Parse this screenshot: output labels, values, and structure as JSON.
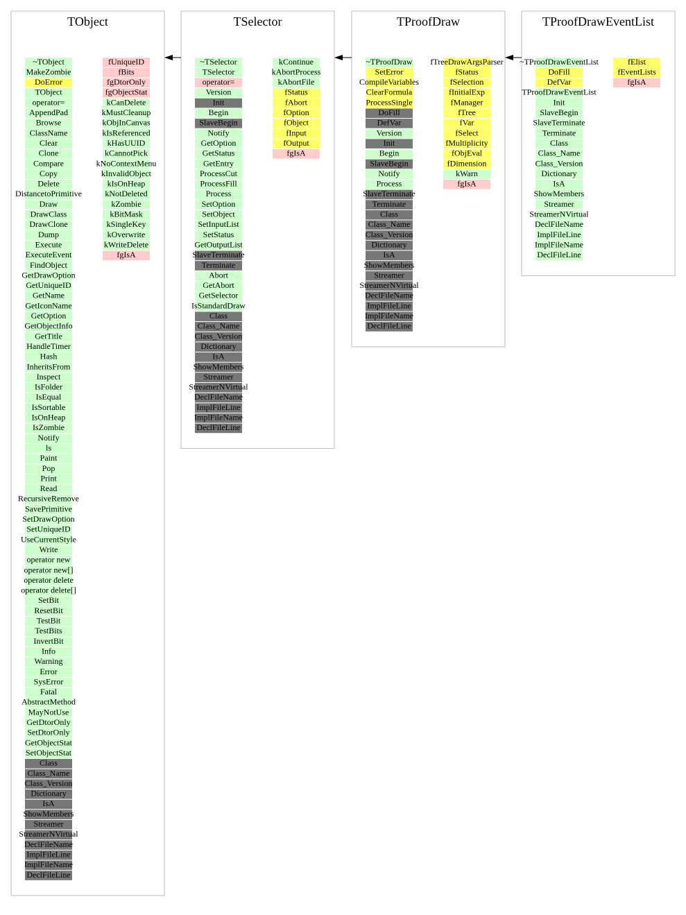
{
  "classes": [
    {
      "title": "TObject",
      "methods": [
        {
          "label": "~TObject",
          "color": "#ccffcc"
        },
        {
          "label": "MakeZombie",
          "color": "#ccffcc"
        },
        {
          "label": "DoError",
          "color": "#ffff66"
        },
        {
          "label": "TObject",
          "color": "#ccffcc"
        },
        {
          "label": "operator=",
          "color": "#ccffcc"
        },
        {
          "label": "AppendPad",
          "color": "#ccffcc"
        },
        {
          "label": "Browse",
          "color": "#ccffcc"
        },
        {
          "label": "ClassName",
          "color": "#ccffcc"
        },
        {
          "label": "Clear",
          "color": "#ccffcc"
        },
        {
          "label": "Clone",
          "color": "#ccffcc"
        },
        {
          "label": "Compare",
          "color": "#ccffcc"
        },
        {
          "label": "Copy",
          "color": "#ccffcc"
        },
        {
          "label": "Delete",
          "color": "#ccffcc"
        },
        {
          "label": "DistancetoPrimitive",
          "color": "#ccffcc"
        },
        {
          "label": "Draw",
          "color": "#ccffcc"
        },
        {
          "label": "DrawClass",
          "color": "#ccffcc"
        },
        {
          "label": "DrawClone",
          "color": "#ccffcc"
        },
        {
          "label": "Dump",
          "color": "#ccffcc"
        },
        {
          "label": "Execute",
          "color": "#ccffcc"
        },
        {
          "label": "ExecuteEvent",
          "color": "#ccffcc"
        },
        {
          "label": "FindObject",
          "color": "#ccffcc"
        },
        {
          "label": "GetDrawOption",
          "color": "#ccffcc"
        },
        {
          "label": "GetUniqueID",
          "color": "#ccffcc"
        },
        {
          "label": "GetName",
          "color": "#ccffcc"
        },
        {
          "label": "GetIconName",
          "color": "#ccffcc"
        },
        {
          "label": "GetOption",
          "color": "#ccffcc"
        },
        {
          "label": "GetObjectInfo",
          "color": "#ccffcc"
        },
        {
          "label": "GetTitle",
          "color": "#ccffcc"
        },
        {
          "label": "HandleTimer",
          "color": "#ccffcc"
        },
        {
          "label": "Hash",
          "color": "#ccffcc"
        },
        {
          "label": "InheritsFrom",
          "color": "#ccffcc"
        },
        {
          "label": "Inspect",
          "color": "#ccffcc"
        },
        {
          "label": "IsFolder",
          "color": "#ccffcc"
        },
        {
          "label": "IsEqual",
          "color": "#ccffcc"
        },
        {
          "label": "IsSortable",
          "color": "#ccffcc"
        },
        {
          "label": "IsOnHeap",
          "color": "#ccffcc"
        },
        {
          "label": "IsZombie",
          "color": "#ccffcc"
        },
        {
          "label": "Notify",
          "color": "#ccffcc"
        },
        {
          "label": "ls",
          "color": "#ccffcc"
        },
        {
          "label": "Paint",
          "color": "#ccffcc"
        },
        {
          "label": "Pop",
          "color": "#ccffcc"
        },
        {
          "label": "Print",
          "color": "#ccffcc"
        },
        {
          "label": "Read",
          "color": "#ccffcc"
        },
        {
          "label": "RecursiveRemove",
          "color": "#ccffcc"
        },
        {
          "label": "SavePrimitive",
          "color": "#ccffcc"
        },
        {
          "label": "SetDrawOption",
          "color": "#ccffcc"
        },
        {
          "label": "SetUniqueID",
          "color": "#ccffcc"
        },
        {
          "label": "UseCurrentStyle",
          "color": "#ccffcc"
        },
        {
          "label": "Write",
          "color": "#ccffcc"
        },
        {
          "label": "operator new",
          "color": "#ccffcc"
        },
        {
          "label": "operator new[]",
          "color": "#ccffcc"
        },
        {
          "label": "operator delete",
          "color": "#ccffcc"
        },
        {
          "label": "operator delete[]",
          "color": "#ccffcc"
        },
        {
          "label": "SetBit",
          "color": "#ccffcc"
        },
        {
          "label": "ResetBit",
          "color": "#ccffcc"
        },
        {
          "label": "TestBit",
          "color": "#ccffcc"
        },
        {
          "label": "TestBits",
          "color": "#ccffcc"
        },
        {
          "label": "InvertBit",
          "color": "#ccffcc"
        },
        {
          "label": "Info",
          "color": "#ccffcc"
        },
        {
          "label": "Warning",
          "color": "#ccffcc"
        },
        {
          "label": "Error",
          "color": "#ccffcc"
        },
        {
          "label": "SysError",
          "color": "#ccffcc"
        },
        {
          "label": "Fatal",
          "color": "#ccffcc"
        },
        {
          "label": "AbstractMethod",
          "color": "#ccffcc"
        },
        {
          "label": "MayNotUse",
          "color": "#ccffcc"
        },
        {
          "label": "GetDtorOnly",
          "color": "#ccffcc"
        },
        {
          "label": "SetDtorOnly",
          "color": "#ccffcc"
        },
        {
          "label": "GetObjectStat",
          "color": "#ccffcc"
        },
        {
          "label": "SetObjectStat",
          "color": "#ccffcc"
        },
        {
          "label": "Class",
          "color": "#777777"
        },
        {
          "label": "Class_Name",
          "color": "#777777"
        },
        {
          "label": "Class_Version",
          "color": "#777777"
        },
        {
          "label": "Dictionary",
          "color": "#777777"
        },
        {
          "label": "IsA",
          "color": "#777777"
        },
        {
          "label": "ShowMembers",
          "color": "#777777"
        },
        {
          "label": "Streamer",
          "color": "#777777"
        },
        {
          "label": "StreamerNVirtual",
          "color": "#777777"
        },
        {
          "label": "DeclFileName",
          "color": "#777777"
        },
        {
          "label": "ImplFileLine",
          "color": "#777777"
        },
        {
          "label": "ImplFileName",
          "color": "#777777"
        },
        {
          "label": "DeclFileLine",
          "color": "#777777"
        }
      ],
      "members": [
        {
          "label": "fUniqueID",
          "color": "#ffcccc"
        },
        {
          "label": "fBits",
          "color": "#ffcccc"
        },
        {
          "label": "fgDtorOnly",
          "color": "#ffcccc"
        },
        {
          "label": "fgObjectStat",
          "color": "#ffcccc"
        },
        {
          "label": "kCanDelete",
          "color": "#ccffcc"
        },
        {
          "label": "kMustCleanup",
          "color": "#ccffcc"
        },
        {
          "label": "kObjInCanvas",
          "color": "#ccffcc"
        },
        {
          "label": "kIsReferenced",
          "color": "#ccffcc"
        },
        {
          "label": "kHasUUID",
          "color": "#ccffcc"
        },
        {
          "label": "kCannotPick",
          "color": "#ccffcc"
        },
        {
          "label": "kNoContextMenu",
          "color": "#ccffcc"
        },
        {
          "label": "kInvalidObject",
          "color": "#ccffcc"
        },
        {
          "label": "kIsOnHeap",
          "color": "#ccffcc"
        },
        {
          "label": "kNotDeleted",
          "color": "#ccffcc"
        },
        {
          "label": "kZombie",
          "color": "#ccffcc"
        },
        {
          "label": "kBitMask",
          "color": "#ccffcc"
        },
        {
          "label": "kSingleKey",
          "color": "#ccffcc"
        },
        {
          "label": "kOverwrite",
          "color": "#ccffcc"
        },
        {
          "label": "kWriteDelete",
          "color": "#ccffcc"
        },
        {
          "label": "fgIsA",
          "color": "#ffcccc"
        }
      ]
    },
    {
      "title": "TSelector",
      "methods": [
        {
          "label": "~TSelector",
          "color": "#ccffcc"
        },
        {
          "label": "TSelector",
          "color": "#ccffcc"
        },
        {
          "label": "operator=",
          "color": "#ffcccc"
        },
        {
          "label": "Version",
          "color": "#ccffcc"
        },
        {
          "label": "Init",
          "color": "#777777"
        },
        {
          "label": "Begin",
          "color": "#ccffcc"
        },
        {
          "label": "SlaveBegin",
          "color": "#777777"
        },
        {
          "label": "Notify",
          "color": "#ccffcc"
        },
        {
          "label": "GetOption",
          "color": "#ccffcc"
        },
        {
          "label": "GetStatus",
          "color": "#ccffcc"
        },
        {
          "label": "GetEntry",
          "color": "#ccffcc"
        },
        {
          "label": "ProcessCut",
          "color": "#ccffcc"
        },
        {
          "label": "ProcessFill",
          "color": "#ccffcc"
        },
        {
          "label": "Process",
          "color": "#ccffcc"
        },
        {
          "label": "SetOption",
          "color": "#ccffcc"
        },
        {
          "label": "SetObject",
          "color": "#ccffcc"
        },
        {
          "label": "SetInputList",
          "color": "#ccffcc"
        },
        {
          "label": "SetStatus",
          "color": "#ccffcc"
        },
        {
          "label": "GetOutputList",
          "color": "#ccffcc"
        },
        {
          "label": "SlaveTerminate",
          "color": "#777777"
        },
        {
          "label": "Terminate",
          "color": "#777777"
        },
        {
          "label": "Abort",
          "color": "#ccffcc"
        },
        {
          "label": "GetAbort",
          "color": "#ccffcc"
        },
        {
          "label": "GetSelector",
          "color": "#ccffcc"
        },
        {
          "label": "IsStandardDraw",
          "color": "#ccffcc"
        },
        {
          "label": "Class",
          "color": "#777777"
        },
        {
          "label": "Class_Name",
          "color": "#777777"
        },
        {
          "label": "Class_Version",
          "color": "#777777"
        },
        {
          "label": "Dictionary",
          "color": "#777777"
        },
        {
          "label": "IsA",
          "color": "#777777"
        },
        {
          "label": "ShowMembers",
          "color": "#777777"
        },
        {
          "label": "Streamer",
          "color": "#777777"
        },
        {
          "label": "StreamerNVirtual",
          "color": "#777777"
        },
        {
          "label": "DeclFileName",
          "color": "#777777"
        },
        {
          "label": "ImplFileLine",
          "color": "#777777"
        },
        {
          "label": "ImplFileName",
          "color": "#777777"
        },
        {
          "label": "DeclFileLine",
          "color": "#777777"
        }
      ],
      "members": [
        {
          "label": "kContinue",
          "color": "#ccffcc"
        },
        {
          "label": "kAbortProcess",
          "color": "#ccffcc"
        },
        {
          "label": "kAbortFile",
          "color": "#ccffcc"
        },
        {
          "label": "fStatus",
          "color": "#ffff66"
        },
        {
          "label": "fAbort",
          "color": "#ffff66"
        },
        {
          "label": "fOption",
          "color": "#ffff66"
        },
        {
          "label": "fObject",
          "color": "#ffff66"
        },
        {
          "label": "fInput",
          "color": "#ffff66"
        },
        {
          "label": "fOutput",
          "color": "#ffff66"
        },
        {
          "label": "fgIsA",
          "color": "#ffcccc"
        }
      ]
    },
    {
      "title": "TProofDraw",
      "methods": [
        {
          "label": "~TProofDraw",
          "color": "#ccffcc"
        },
        {
          "label": "SetError",
          "color": "#ffff66"
        },
        {
          "label": "CompileVariables",
          "color": "#ffff66"
        },
        {
          "label": "ClearFormula",
          "color": "#ffff66"
        },
        {
          "label": "ProcessSingle",
          "color": "#ffff66"
        },
        {
          "label": "DoFill",
          "color": "#777777"
        },
        {
          "label": "DefVar",
          "color": "#777777"
        },
        {
          "label": "Version",
          "color": "#ccffcc"
        },
        {
          "label": "Init",
          "color": "#777777"
        },
        {
          "label": "Begin",
          "color": "#ccffcc"
        },
        {
          "label": "SlaveBegin",
          "color": "#777777"
        },
        {
          "label": "Notify",
          "color": "#ccffcc"
        },
        {
          "label": "Process",
          "color": "#ccffcc"
        },
        {
          "label": "SlaveTerminate",
          "color": "#777777"
        },
        {
          "label": "Terminate",
          "color": "#777777"
        },
        {
          "label": "Class",
          "color": "#777777"
        },
        {
          "label": "Class_Name",
          "color": "#777777"
        },
        {
          "label": "Class_Version",
          "color": "#777777"
        },
        {
          "label": "Dictionary",
          "color": "#777777"
        },
        {
          "label": "IsA",
          "color": "#777777"
        },
        {
          "label": "ShowMembers",
          "color": "#777777"
        },
        {
          "label": "Streamer",
          "color": "#777777"
        },
        {
          "label": "StreamerNVirtual",
          "color": "#777777"
        },
        {
          "label": "DeclFileName",
          "color": "#777777"
        },
        {
          "label": "ImplFileLine",
          "color": "#777777"
        },
        {
          "label": "ImplFileName",
          "color": "#777777"
        },
        {
          "label": "DeclFileLine",
          "color": "#777777"
        }
      ],
      "members": [
        {
          "label": "fTreeDrawArgsParser",
          "color": "#ffff66"
        },
        {
          "label": "fStatus",
          "color": "#ffff66"
        },
        {
          "label": "fSelection",
          "color": "#ffff66"
        },
        {
          "label": "fInitialExp",
          "color": "#ffff66"
        },
        {
          "label": "fManager",
          "color": "#ffff66"
        },
        {
          "label": "fTree",
          "color": "#ffff66"
        },
        {
          "label": "fVar",
          "color": "#ffff66"
        },
        {
          "label": "fSelect",
          "color": "#ffff66"
        },
        {
          "label": "fMultiplicity",
          "color": "#ffff66"
        },
        {
          "label": "fObjEval",
          "color": "#ffff66"
        },
        {
          "label": "fDimension",
          "color": "#ffff66"
        },
        {
          "label": "kWarn",
          "color": "#ccffcc"
        },
        {
          "label": "fgIsA",
          "color": "#ffcccc"
        }
      ]
    },
    {
      "title": "TProofDrawEventList",
      "methods": [
        {
          "label": "~TProofDrawEventList",
          "color": "#ccffcc"
        },
        {
          "label": "DoFill",
          "color": "#ffff66"
        },
        {
          "label": "DefVar",
          "color": "#ffff66"
        },
        {
          "label": "TProofDrawEventList",
          "color": "#ccffcc"
        },
        {
          "label": "Init",
          "color": "#ccffcc"
        },
        {
          "label": "SlaveBegin",
          "color": "#ccffcc"
        },
        {
          "label": "SlaveTerminate",
          "color": "#ccffcc"
        },
        {
          "label": "Terminate",
          "color": "#ccffcc"
        },
        {
          "label": "Class",
          "color": "#ccffcc"
        },
        {
          "label": "Class_Name",
          "color": "#ccffcc"
        },
        {
          "label": "Class_Version",
          "color": "#ccffcc"
        },
        {
          "label": "Dictionary",
          "color": "#ccffcc"
        },
        {
          "label": "IsA",
          "color": "#ccffcc"
        },
        {
          "label": "ShowMembers",
          "color": "#ccffcc"
        },
        {
          "label": "Streamer",
          "color": "#ccffcc"
        },
        {
          "label": "StreamerNVirtual",
          "color": "#ccffcc"
        },
        {
          "label": "DeclFileName",
          "color": "#ccffcc"
        },
        {
          "label": "ImplFileLine",
          "color": "#ccffcc"
        },
        {
          "label": "ImplFileName",
          "color": "#ccffcc"
        },
        {
          "label": "DeclFileLine",
          "color": "#ccffcc"
        }
      ],
      "members": [
        {
          "label": "fElist",
          "color": "#ffff66"
        },
        {
          "label": "fEventLists",
          "color": "#ffff66"
        },
        {
          "label": "fgIsA",
          "color": "#ffcccc"
        }
      ]
    }
  ]
}
